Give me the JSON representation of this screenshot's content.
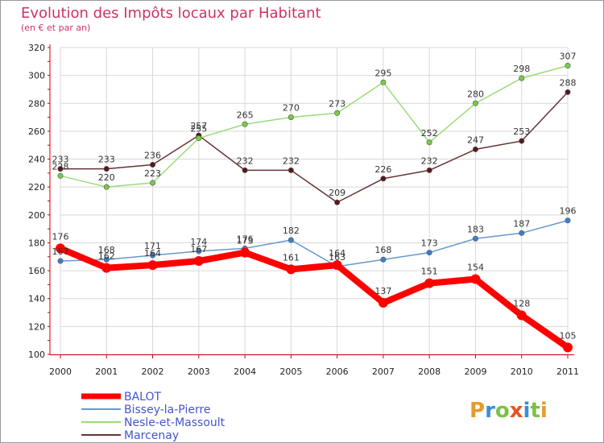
{
  "chart_data": {
    "type": "line",
    "title": "Evolution des Impôts locaux par Habitant",
    "subtitle": "(en € et par an)",
    "xlabel": "",
    "ylabel": "",
    "x": [
      "2000",
      "2001",
      "2002",
      "2003",
      "2004",
      "2005",
      "2006",
      "2007",
      "2008",
      "2009",
      "2010",
      "2011"
    ],
    "ylim": [
      100,
      320
    ],
    "yticks": [
      100,
      120,
      140,
      160,
      180,
      200,
      220,
      240,
      260,
      280,
      300,
      320
    ],
    "grid": true,
    "legend_position": "bottom-left",
    "series": [
      {
        "name": "BALOT",
        "color": "#ff0000",
        "marker_color": "#ff0000",
        "values": [
          176,
          162,
          164,
          167,
          173,
          161,
          164,
          137,
          151,
          154,
          128,
          105
        ]
      },
      {
        "name": "Bissey-la-Pierre",
        "color": "#6699cc",
        "marker_color": "#3a7fd0",
        "values": [
          167,
          168,
          171,
          174,
          176,
          182,
          163,
          168,
          173,
          183,
          187,
          196
        ]
      },
      {
        "name": "Nesle-et-Massoult",
        "color": "#99dd77",
        "marker_color": "#77cc44",
        "values": [
          228,
          220,
          223,
          255,
          265,
          270,
          273,
          295,
          252,
          280,
          298,
          307
        ]
      },
      {
        "name": "Marcenay",
        "color": "#663333",
        "marker_color": "#551a1a",
        "values": [
          233,
          233,
          236,
          257,
          232,
          232,
          209,
          226,
          232,
          247,
          253,
          288
        ]
      }
    ]
  },
  "colors": {
    "title": "#cc3366",
    "legend_text": "#4455cc",
    "axis": "#cc0000",
    "grid": "#d8d8d8"
  },
  "brand": {
    "text": "Proxiti",
    "letters": [
      {
        "char": "P",
        "color": "#e69a2e"
      },
      {
        "char": "r",
        "color": "#3a8fd6"
      },
      {
        "char": "o",
        "color": "#7cc242"
      },
      {
        "char": "x",
        "color": "#e8541e"
      },
      {
        "char": "i",
        "color": "#3a8fd6"
      },
      {
        "char": "t",
        "color": "#7cc242"
      },
      {
        "char": "i",
        "color": "#e69a2e"
      }
    ]
  }
}
